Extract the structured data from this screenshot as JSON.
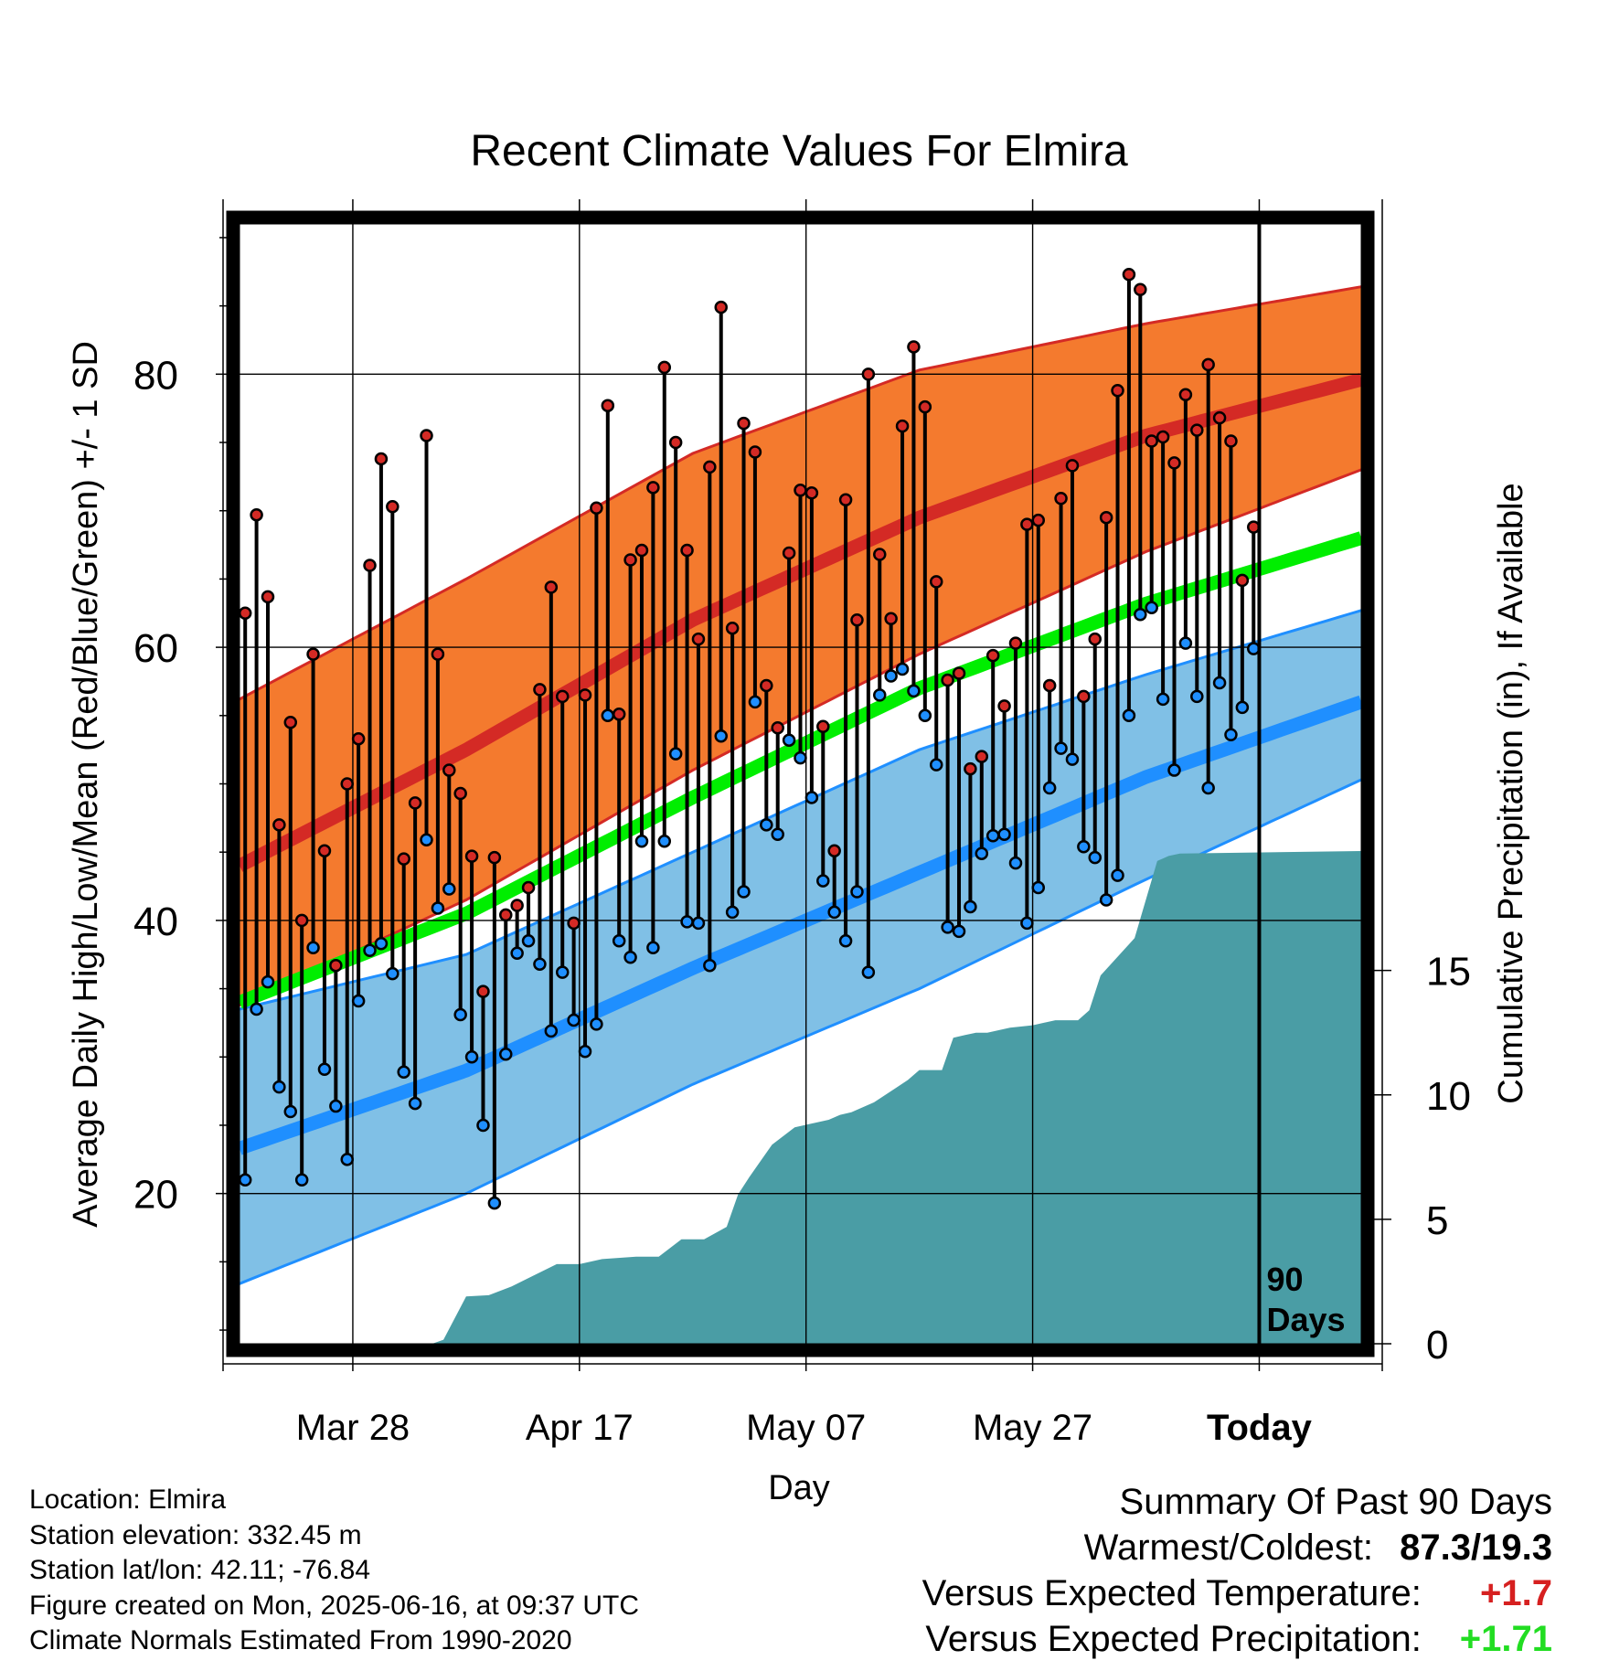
{
  "chart_data": {
    "type": "line",
    "title": "Recent Climate Values For Elmira",
    "xlabel": "Day",
    "ylabel": "Average Daily High/Low/Mean (Red/Blue/Green) +/- 1 SD",
    "y2label": "Cumulative Precipitation (in), If Available",
    "ylim": [
      9,
      91
    ],
    "y2lim": [
      0,
      45
    ],
    "y_ticks": [
      20,
      40,
      60,
      80
    ],
    "y2_ticks": [
      0,
      5,
      10,
      15
    ],
    "x_range_days": [
      -90,
      9
    ],
    "x_ticks": [
      {
        "day": -80,
        "label": "Mar 28"
      },
      {
        "day": -60,
        "label": "Apr 17"
      },
      {
        "day": -40,
        "label": "May 07"
      },
      {
        "day": -20,
        "label": "May 27"
      },
      {
        "day": 0,
        "label": "Today"
      }
    ],
    "today_label": "90\nDays",
    "grid": true,
    "colors": {
      "high_band": "#f47a2e",
      "high_line": "#d42a25",
      "low_band": "#80c0e6",
      "low_line": "#1f8fff",
      "mean_line": "#00ee00",
      "precip": "#4a9da5",
      "high_dot": "#d42a25",
      "low_dot": "#1f8fff"
    },
    "normals": {
      "days": [
        -90,
        -70,
        -50,
        -30,
        -10,
        9
      ],
      "high_mean": [
        44.0,
        52.5,
        62.0,
        69.5,
        75.5,
        79.6
      ],
      "high_sd_upper": [
        56.2,
        65.0,
        74.2,
        80.3,
        83.7,
        86.4
      ],
      "high_sd_lower": [
        33.8,
        41.5,
        51.0,
        59.5,
        67.0,
        73.0
      ],
      "low_mean": [
        23.3,
        29.0,
        36.5,
        43.5,
        50.5,
        56.0
      ],
      "low_sd_upper": [
        33.5,
        37.5,
        45.0,
        52.5,
        58.0,
        62.7
      ],
      "low_sd_lower": [
        13.4,
        20.0,
        28.0,
        35.0,
        43.0,
        50.3
      ],
      "mean": [
        34.0,
        40.5,
        49.0,
        57.0,
        63.2,
        68.0
      ]
    },
    "series": [
      {
        "name": "High",
        "values": [
          62.5,
          69.7,
          63.7,
          47.0,
          54.5,
          40.0,
          59.5,
          45.1,
          36.7,
          50.0,
          53.3,
          66.0,
          73.8,
          70.3,
          44.5,
          48.6,
          75.5,
          59.5,
          51.0,
          49.3,
          44.7,
          34.8,
          44.6,
          40.4,
          41.1,
          42.4,
          56.9,
          64.4,
          56.4,
          39.8,
          56.5,
          70.2,
          77.7,
          55.1,
          66.4,
          67.1,
          71.7,
          80.5,
          75.0,
          67.1,
          60.6,
          73.2,
          84.9,
          61.4,
          76.4,
          74.3,
          57.2,
          54.1,
          66.9,
          71.5,
          71.3,
          54.2,
          45.1,
          70.8,
          62.0,
          80.0,
          66.8,
          62.1,
          76.2,
          82.0,
          77.6,
          64.8,
          57.6,
          58.1,
          51.1,
          52.0,
          59.4,
          55.7,
          60.3,
          69.0,
          69.3,
          57.2,
          70.9,
          73.3,
          56.4,
          60.6,
          69.5,
          78.8,
          87.3,
          86.2,
          75.1,
          75.4,
          73.5,
          78.5,
          75.9,
          80.7,
          76.8,
          75.1,
          64.9,
          68.8
        ]
      },
      {
        "name": "Low",
        "values": [
          21.0,
          33.5,
          35.5,
          27.8,
          26.0,
          21.0,
          38.0,
          29.1,
          26.4,
          22.5,
          34.1,
          37.8,
          38.3,
          36.1,
          28.9,
          26.6,
          45.9,
          40.9,
          42.3,
          33.1,
          30.0,
          25.0,
          19.3,
          30.2,
          37.6,
          38.5,
          36.8,
          31.9,
          36.2,
          32.7,
          30.4,
          32.4,
          55.0,
          38.5,
          37.3,
          45.8,
          38.0,
          45.8,
          52.2,
          39.9,
          39.8,
          36.7,
          53.5,
          40.6,
          42.1,
          56.0,
          47.0,
          46.3,
          53.2,
          51.9,
          49.0,
          42.9,
          40.6,
          38.5,
          42.1,
          36.2,
          56.5,
          57.9,
          58.4,
          56.8,
          55.0,
          51.4,
          39.5,
          39.2,
          41.0,
          44.9,
          46.2,
          46.3,
          44.2,
          39.8,
          42.4,
          49.7,
          52.6,
          51.8,
          45.4,
          44.6,
          41.5,
          43.3,
          55.0,
          62.4,
          62.9,
          56.2,
          51.0,
          60.3,
          56.4,
          49.7,
          57.4,
          53.6,
          55.6,
          59.9
        ]
      },
      {
        "name": "Cumulative Precipitation",
        "days": [
          -90,
          -81,
          -73,
          -72,
          -70,
          -68,
          -66,
          -64,
          -62,
          -60,
          -58,
          -55,
          -53,
          -51,
          -49,
          -47,
          -46,
          -45,
          -43,
          -41,
          -39,
          -38,
          -37,
          -36,
          -34,
          -32,
          -31,
          -30,
          -28,
          -27,
          -26,
          -25,
          -24,
          -23,
          -22,
          -20,
          -18,
          -16,
          -15,
          -14,
          -13,
          -11,
          -9,
          -8,
          -7,
          9
        ],
        "values": [
          0,
          0,
          0,
          0.16,
          1.9,
          1.95,
          2.3,
          2.75,
          3.2,
          3.2,
          3.4,
          3.5,
          3.5,
          4.2,
          4.2,
          4.7,
          6.0,
          6.7,
          8.0,
          8.7,
          8.9,
          9.0,
          9.2,
          9.3,
          9.7,
          10.3,
          10.6,
          11.0,
          11.0,
          12.3,
          12.4,
          12.5,
          12.5,
          12.6,
          12.7,
          12.8,
          13.0,
          13.0,
          13.4,
          14.8,
          15.3,
          16.3,
          19.4,
          19.6,
          19.7,
          19.8
        ]
      }
    ]
  },
  "footer": {
    "location": "Location: Elmira",
    "elevation": "Station elevation: 332.45 m",
    "latlon": "Station lat/lon: 42.11; -76.84",
    "created": "Figure created on Mon, 2025-06-16, at 09:37 UTC",
    "normals": "Climate Normals Estimated From 1990-2020"
  },
  "summary": {
    "title": "Summary Of Past 90 Days",
    "warmest_label": "Warmest/Coldest:",
    "warmest_value": "87.3/19.3",
    "temp_label": "Versus Expected Temperature:",
    "temp_value": "+1.7",
    "precip_label": "Versus Expected Precipitation:",
    "precip_value": "+1.71"
  }
}
